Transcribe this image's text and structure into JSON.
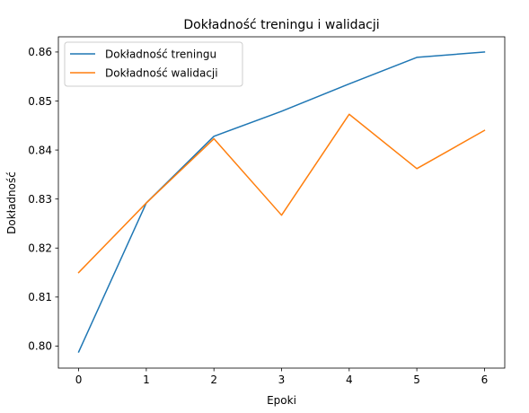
{
  "chart_data": {
    "type": "line",
    "title": "Dokładność treningu i walidacji",
    "xlabel": "Epoki",
    "ylabel": "Dokładność",
    "x": [
      0,
      1,
      2,
      3,
      4,
      5,
      6
    ],
    "x_ticks": [
      "0",
      "1",
      "2",
      "3",
      "4",
      "5",
      "6"
    ],
    "y_ticks": [
      "0.80",
      "0.81",
      "0.82",
      "0.83",
      "0.84",
      "0.85",
      "0.86"
    ],
    "y_tick_values": [
      0.8,
      0.81,
      0.82,
      0.83,
      0.84,
      0.85,
      0.86
    ],
    "xlim": [
      -0.3,
      6.3
    ],
    "ylim": [
      0.7955,
      0.8631
    ],
    "grid": false,
    "legend_position": "top-left",
    "series": [
      {
        "name": "Dokładność treningu",
        "color": "#1f77b4",
        "values": [
          0.7988,
          0.8292,
          0.8428,
          0.8479,
          0.8535,
          0.8589,
          0.86
        ]
      },
      {
        "name": "Dokładność walidacji",
        "color": "#ff7f0e",
        "values": [
          0.815,
          0.8292,
          0.8423,
          0.8267,
          0.8473,
          0.8362,
          0.844
        ]
      }
    ]
  }
}
